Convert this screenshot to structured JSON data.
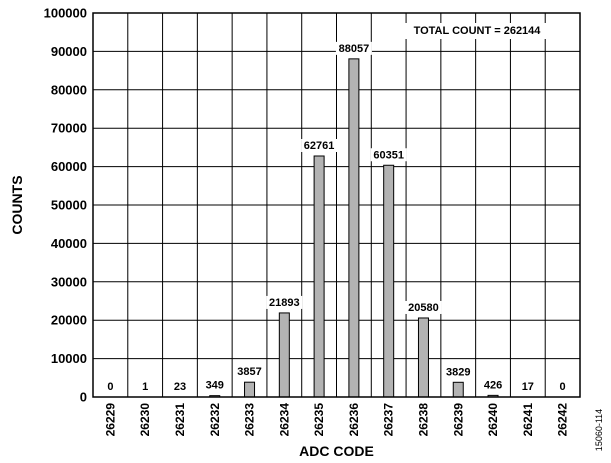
{
  "chart_data": {
    "type": "bar",
    "categories": [
      "26229",
      "26230",
      "26231",
      "26232",
      "26233",
      "26234",
      "26235",
      "26236",
      "26237",
      "26238",
      "26239",
      "26240",
      "26241",
      "26242"
    ],
    "values": [
      0,
      1,
      23,
      349,
      3857,
      21893,
      62761,
      88057,
      60351,
      20580,
      3829,
      426,
      17,
      0
    ],
    "data_labels": [
      "0",
      "1",
      "23",
      "349",
      "3857",
      "21893",
      "62761",
      "88057",
      "60351",
      "20580",
      "3829",
      "426",
      "17",
      "0"
    ],
    "xlabel": "ADC CODE",
    "ylabel": "COUNTS",
    "ylim": [
      0,
      100000
    ],
    "yticks": [
      0,
      10000,
      20000,
      30000,
      40000,
      50000,
      60000,
      70000,
      80000,
      90000,
      100000
    ],
    "ytick_labels": [
      "0",
      "10000",
      "20000",
      "30000",
      "40000",
      "50000",
      "60000",
      "70000",
      "80000",
      "90000",
      "100000"
    ],
    "grid": true,
    "annotation": "TOTAL COUNT = 262144",
    "bar_color": "#b3b3b3",
    "figure_id": "15060-114"
  }
}
